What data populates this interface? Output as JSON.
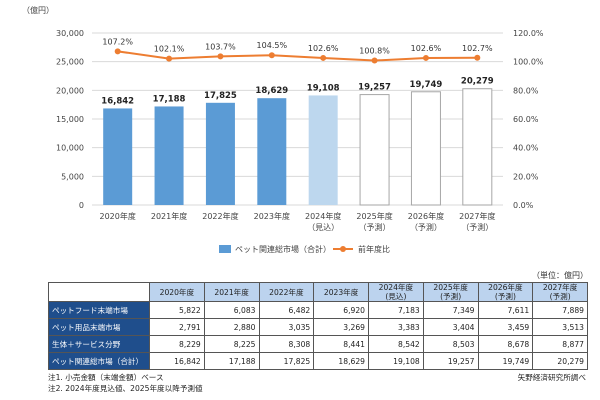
{
  "chart_data": {
    "type": "bar",
    "y_unit": "（億円）",
    "categories": [
      [
        "2020年度"
      ],
      [
        "2021年度"
      ],
      [
        "2022年度"
      ],
      [
        "2023年度"
      ],
      [
        "2024年度",
        "（見込）"
      ],
      [
        "2025年度",
        "（予測）"
      ],
      [
        "2026年度",
        "（予測）"
      ],
      [
        "2027年度",
        "（予測）"
      ]
    ],
    "series": [
      {
        "name": "ペット関連総市場（合計）",
        "type": "bar",
        "axis": "left",
        "values": [
          16842,
          17188,
          17825,
          18629,
          19108,
          19257,
          19749,
          20279
        ],
        "labels": [
          "16,842",
          "17,188",
          "17,825",
          "18,629",
          "19,108",
          "19,257",
          "19,749",
          "20,279"
        ],
        "bar_styles": [
          "actual",
          "actual",
          "actual",
          "actual",
          "estimate",
          "forecast",
          "forecast",
          "forecast"
        ]
      },
      {
        "name": "前年度比",
        "type": "line",
        "axis": "right",
        "values": [
          107.2,
          102.1,
          103.7,
          104.5,
          102.6,
          100.8,
          102.6,
          102.7
        ],
        "labels": [
          "107.2%",
          "102.1%",
          "103.7%",
          "104.5%",
          "102.6%",
          "100.8%",
          "102.6%",
          "102.7%"
        ]
      }
    ],
    "y_left": {
      "min": 0,
      "max": 30000,
      "ticks": [
        "0",
        "5,000",
        "10,000",
        "15,000",
        "20,000",
        "25,000",
        "30,000"
      ]
    },
    "y_right": {
      "min": 0,
      "max": 120,
      "ticks": [
        "0.0%",
        "20.0%",
        "40.0%",
        "60.0%",
        "80.0%",
        "100.0%",
        "120.0%"
      ]
    },
    "grid": true,
    "legend_position": "bottom",
    "colors": {
      "actual": "#5b9bd5",
      "estimate": "#bdd7ee",
      "forecast": "#ffffff",
      "forecast_border": "#a6a6a6",
      "line": "#ed7d31",
      "grid": "#d9d9d9"
    }
  },
  "table": {
    "unit_note": "（単位：億円）",
    "headers": [
      [
        "2020年度"
      ],
      [
        "2021年度"
      ],
      [
        "2022年度"
      ],
      [
        "2023年度"
      ],
      [
        "2024年度",
        "(見込)"
      ],
      [
        "2025年度",
        "(予測)"
      ],
      [
        "2026年度",
        "(予測)"
      ],
      [
        "2027年度",
        "(予測)"
      ]
    ],
    "rows": [
      {
        "label": "ペットフード末端市場",
        "values": [
          "5,822",
          "6,083",
          "6,482",
          "6,920",
          "7,183",
          "7,349",
          "7,611",
          "7,889"
        ]
      },
      {
        "label": "ペット用品末端市場",
        "values": [
          "2,791",
          "2,880",
          "3,035",
          "3,269",
          "3,383",
          "3,404",
          "3,459",
          "3,513"
        ]
      },
      {
        "label": "生体＋サービス分野",
        "values": [
          "8,229",
          "8,225",
          "8,308",
          "8,441",
          "8,542",
          "8,503",
          "8,678",
          "8,877"
        ]
      },
      {
        "label": "ペット関連総市場（合計）",
        "values": [
          "16,842",
          "17,188",
          "17,825",
          "18,629",
          "19,108",
          "19,257",
          "19,749",
          "20,279"
        ]
      }
    ]
  },
  "notes": [
    "注1. 小売金額（末端金額）ベース",
    "注2. 2024年度見込値、2025年度以降予測値"
  ],
  "source": "矢野経済研究所調べ"
}
